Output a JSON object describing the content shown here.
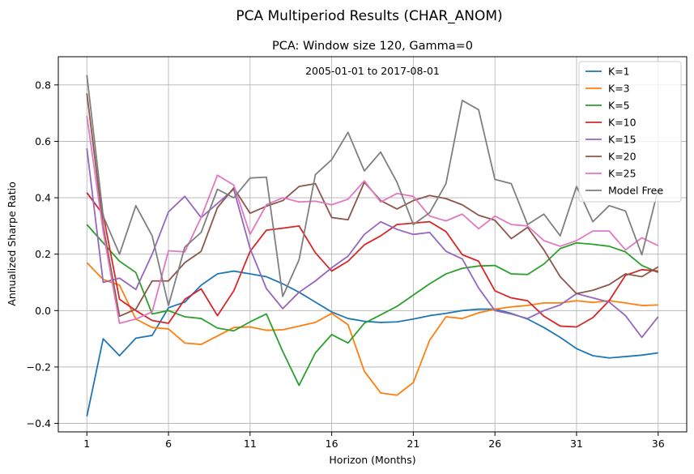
{
  "figure": {
    "suptitle": "PCA Multiperiod Results (CHAR_ANOM)"
  },
  "chart_data": {
    "type": "line",
    "title": "PCA: Window size 120, Gamma=0",
    "annotation": "2005-01-01 to 2017-08-01",
    "xlabel": "Horizon (Months)",
    "ylabel": "Annualized Sharpe Ratio",
    "xlim": [
      -0.75,
      37.75
    ],
    "ylim": [
      -0.43,
      0.9
    ],
    "xticks": [
      1,
      6,
      11,
      16,
      21,
      26,
      31,
      36
    ],
    "yticks": [
      -0.4,
      -0.2,
      0.0,
      0.2,
      0.4,
      0.6,
      0.8
    ],
    "ytick_labels": [
      "−0.4",
      "−0.2",
      "0.0",
      "0.2",
      "0.4",
      "0.6",
      "0.8"
    ],
    "grid": true,
    "legend_position": "top-right",
    "x": [
      1,
      2,
      3,
      4,
      5,
      6,
      7,
      8,
      9,
      10,
      11,
      12,
      13,
      14,
      15,
      16,
      17,
      18,
      19,
      20,
      21,
      22,
      23,
      24,
      25,
      26,
      27,
      28,
      29,
      30,
      31,
      32,
      33,
      34,
      35,
      36
    ],
    "series": [
      {
        "name": "K=1",
        "color": "#1f77b4",
        "values": [
          -0.375,
          -0.1,
          -0.16,
          -0.098,
          -0.088,
          0.01,
          0.03,
          0.09,
          0.13,
          0.14,
          0.13,
          0.12,
          0.095,
          0.065,
          0.03,
          -0.005,
          -0.028,
          -0.038,
          -0.042,
          -0.04,
          -0.03,
          -0.018,
          -0.01,
          0.0,
          0.005,
          0.005,
          -0.01,
          -0.03,
          -0.06,
          -0.095,
          -0.135,
          -0.16,
          -0.168,
          -0.163,
          -0.158,
          -0.15
        ]
      },
      {
        "name": "K=3",
        "color": "#ff7f0e",
        "values": [
          0.17,
          0.11,
          0.09,
          -0.03,
          -0.06,
          -0.065,
          -0.115,
          -0.12,
          -0.09,
          -0.06,
          -0.058,
          -0.07,
          -0.068,
          -0.055,
          -0.042,
          -0.01,
          -0.05,
          -0.215,
          -0.292,
          -0.3,
          -0.255,
          -0.105,
          -0.022,
          -0.028,
          -0.008,
          0.005,
          0.013,
          0.018,
          0.027,
          0.027,
          0.035,
          0.029,
          0.035,
          0.027,
          0.018,
          0.02
        ]
      },
      {
        "name": "K=5",
        "color": "#2ca02c",
        "values": [
          0.305,
          0.24,
          0.175,
          0.135,
          -0.012,
          0.0,
          -0.022,
          -0.028,
          -0.062,
          -0.072,
          -0.04,
          -0.012,
          -0.145,
          -0.265,
          -0.15,
          -0.085,
          -0.115,
          -0.045,
          -0.015,
          0.015,
          0.055,
          0.095,
          0.13,
          0.15,
          0.158,
          0.16,
          0.13,
          0.128,
          0.165,
          0.22,
          0.24,
          0.235,
          0.228,
          0.208,
          0.16,
          0.135
        ]
      },
      {
        "name": "K=10",
        "color": "#d62728",
        "values": [
          0.418,
          0.34,
          0.04,
          0.0,
          -0.035,
          -0.045,
          0.04,
          0.077,
          -0.018,
          0.07,
          0.21,
          0.285,
          0.292,
          0.3,
          0.205,
          0.14,
          0.175,
          0.233,
          0.265,
          0.305,
          0.31,
          0.315,
          0.28,
          0.198,
          0.175,
          0.07,
          0.045,
          0.035,
          -0.02,
          -0.055,
          -0.058,
          -0.025,
          0.035,
          0.125,
          0.145,
          0.14
        ]
      },
      {
        "name": "K=15",
        "color": "#9467bd",
        "values": [
          0.575,
          0.1,
          0.115,
          0.075,
          0.2,
          0.35,
          0.405,
          0.33,
          0.38,
          0.43,
          0.22,
          0.078,
          0.007,
          0.065,
          0.105,
          0.152,
          0.193,
          0.27,
          0.315,
          0.288,
          0.27,
          0.277,
          0.21,
          0.183,
          0.08,
          0.0,
          -0.012,
          -0.028,
          0.0,
          0.02,
          0.06,
          0.045,
          0.03,
          -0.018,
          -0.095,
          -0.022
        ]
      },
      {
        "name": "K=20",
        "color": "#8c564b",
        "values": [
          0.77,
          0.3,
          -0.02,
          0.005,
          0.105,
          0.105,
          0.17,
          0.21,
          0.365,
          0.435,
          0.345,
          0.37,
          0.39,
          0.44,
          0.45,
          0.33,
          0.322,
          0.455,
          0.39,
          0.36,
          0.39,
          0.408,
          0.397,
          0.375,
          0.338,
          0.32,
          0.255,
          0.295,
          0.215,
          0.12,
          0.06,
          0.072,
          0.092,
          0.13,
          0.12,
          0.155
        ]
      },
      {
        "name": "K=25",
        "color": "#e377c2",
        "values": [
          0.69,
          0.28,
          -0.045,
          -0.03,
          -0.005,
          0.212,
          0.208,
          0.33,
          0.48,
          0.445,
          0.27,
          0.375,
          0.4,
          0.385,
          0.388,
          0.375,
          0.395,
          0.46,
          0.385,
          0.415,
          0.405,
          0.335,
          0.318,
          0.342,
          0.29,
          0.335,
          0.305,
          0.3,
          0.248,
          0.228,
          0.248,
          0.282,
          0.282,
          0.215,
          0.258,
          0.23
        ]
      },
      {
        "name": "Model Free",
        "color": "#7f7f7f",
        "values": [
          0.835,
          0.335,
          0.2,
          0.372,
          0.265,
          0.018,
          0.225,
          0.277,
          0.43,
          0.4,
          0.47,
          0.473,
          0.05,
          0.18,
          0.482,
          0.535,
          0.632,
          0.495,
          0.562,
          0.455,
          0.305,
          0.347,
          0.45,
          0.745,
          0.712,
          0.465,
          0.45,
          0.305,
          0.342,
          0.265,
          0.44,
          0.315,
          0.372,
          0.353,
          0.198,
          0.43
        ]
      }
    ]
  }
}
